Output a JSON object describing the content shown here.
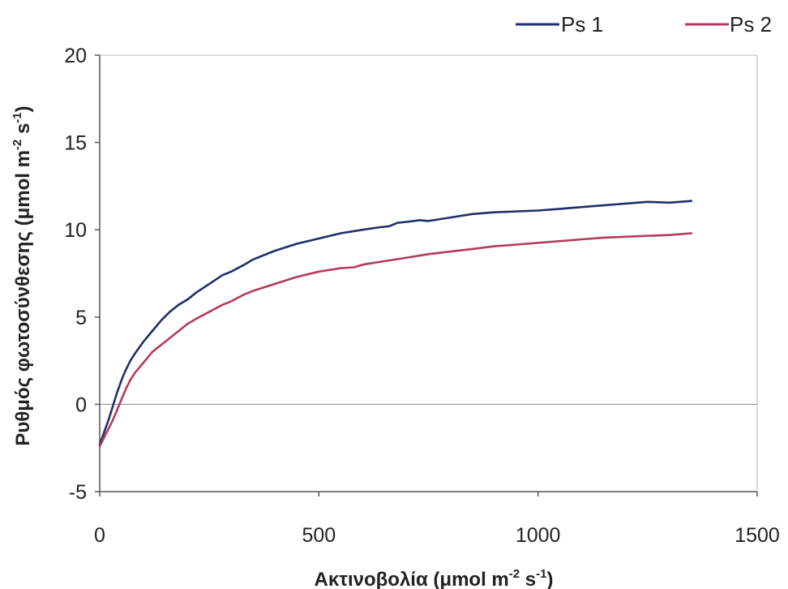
{
  "chart_data": {
    "type": "line",
    "title": "",
    "xlabel": {
      "base": "Ακτινοβολία (μmol m",
      "sup1": "-2",
      "mid": " s",
      "sup2": "-1",
      "end": ")"
    },
    "ylabel": {
      "base": "Ρυθμός φωτοσύνθεσης (μmol m",
      "sup1": "-2",
      "mid": " s",
      "sup2": "-1",
      "end": ")"
    },
    "xlim": [
      0,
      1500
    ],
    "ylim": [
      -5,
      20
    ],
    "xticks": [
      0,
      500,
      1000,
      1500
    ],
    "yticks": [
      -5,
      0,
      5,
      10,
      15,
      20
    ],
    "xtick_labels": [
      "0",
      "500",
      "1000",
      "1500"
    ],
    "ytick_labels": [
      "-5",
      "0",
      "5",
      "10",
      "15",
      "20"
    ],
    "grid": false,
    "legend_position": "top-right",
    "series": [
      {
        "name": "Ps 1",
        "color": "#1f2f6b",
        "x": [
          0,
          10,
          20,
          30,
          40,
          50,
          60,
          70,
          80,
          100,
          120,
          140,
          160,
          180,
          200,
          220,
          250,
          280,
          300,
          330,
          350,
          400,
          450,
          500,
          550,
          600,
          640,
          660,
          680,
          700,
          730,
          750,
          800,
          850,
          900,
          950,
          1000,
          1050,
          1100,
          1150,
          1200,
          1250,
          1300,
          1350
        ],
        "y": [
          -2.3,
          -1.6,
          -0.9,
          -0.1,
          0.7,
          1.4,
          2.0,
          2.5,
          2.9,
          3.6,
          4.2,
          4.8,
          5.3,
          5.7,
          6.0,
          6.4,
          6.9,
          7.4,
          7.6,
          8.0,
          8.3,
          8.8,
          9.2,
          9.5,
          9.8,
          10.0,
          10.15,
          10.2,
          10.4,
          10.45,
          10.55,
          10.5,
          10.7,
          10.9,
          11.0,
          11.05,
          11.1,
          11.2,
          11.3,
          11.4,
          11.5,
          11.6,
          11.55,
          11.65
        ]
      },
      {
        "name": "Ps 2",
        "color": "#b53b5a",
        "x": [
          0,
          10,
          20,
          30,
          40,
          50,
          60,
          70,
          80,
          100,
          120,
          140,
          160,
          180,
          200,
          220,
          250,
          280,
          300,
          330,
          350,
          400,
          450,
          500,
          550,
          580,
          600,
          650,
          700,
          750,
          800,
          850,
          900,
          950,
          1000,
          1050,
          1100,
          1150,
          1200,
          1250,
          1300,
          1350
        ],
        "y": [
          -2.4,
          -1.9,
          -1.4,
          -0.9,
          -0.3,
          0.3,
          0.9,
          1.4,
          1.8,
          2.4,
          3.0,
          3.4,
          3.8,
          4.2,
          4.6,
          4.9,
          5.3,
          5.7,
          5.9,
          6.3,
          6.5,
          6.9,
          7.3,
          7.6,
          7.8,
          7.85,
          8.0,
          8.2,
          8.4,
          8.6,
          8.75,
          8.9,
          9.05,
          9.15,
          9.25,
          9.35,
          9.45,
          9.55,
          9.6,
          9.65,
          9.7,
          9.8
        ]
      }
    ]
  }
}
